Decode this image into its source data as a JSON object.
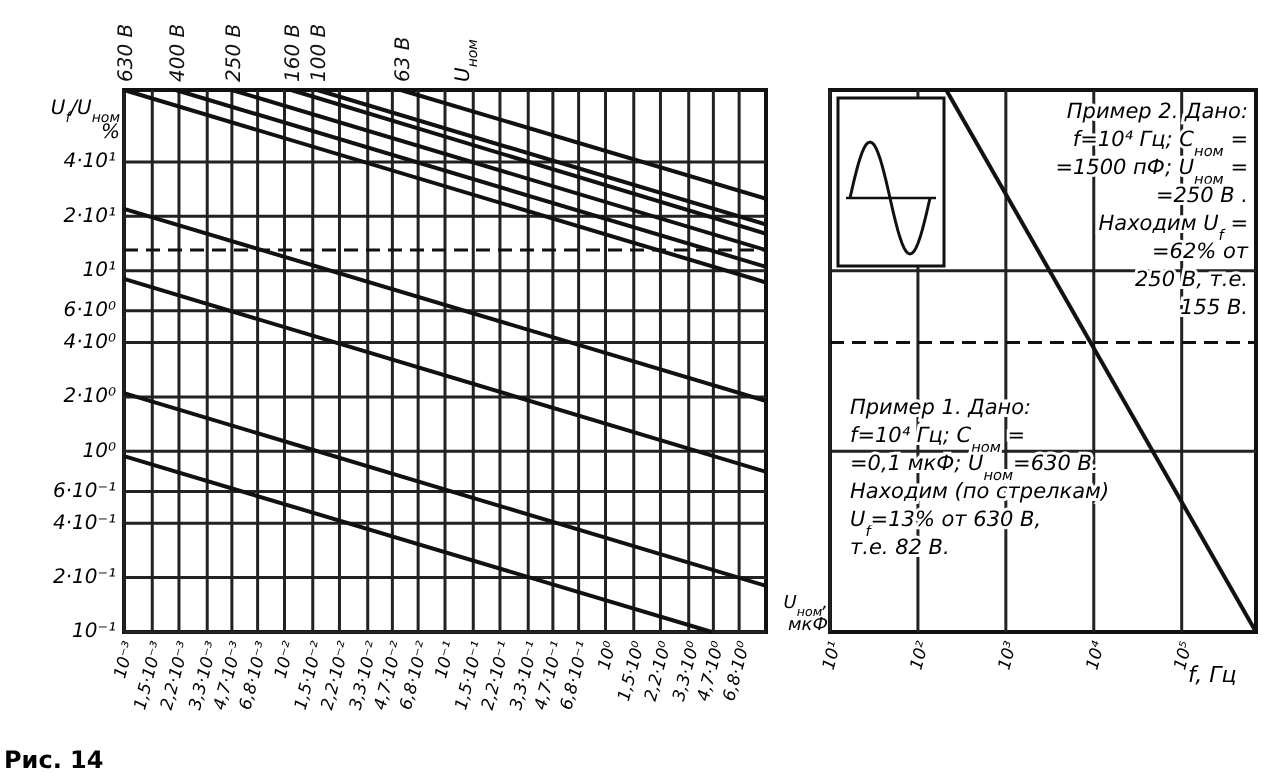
{
  "chart_data": [
    {
      "type": "line",
      "ylabel": "U$_{f}$/U$_{ном}$ %",
      "xlabel": "U$_{ном}$, мкФ",
      "legend_title": "U$_{ном}$",
      "log": "xy",
      "grid": true,
      "legend": "top",
      "line_style": "solid",
      "marker": "none",
      "xlim": [
        0.001,
        10
      ],
      "ylim": [
        0.1,
        100
      ],
      "xticks": [
        {
          "value": 0.001,
          "label": "10⁻³"
        },
        {
          "value": 0.0015,
          "label": "1,5·10⁻³"
        },
        {
          "value": 0.0022,
          "label": "2,2·10⁻³"
        },
        {
          "value": 0.0033,
          "label": "3,3·10⁻³"
        },
        {
          "value": 0.0047,
          "label": "4,7·10⁻³"
        },
        {
          "value": 0.0068,
          "label": "6,8·10⁻³"
        },
        {
          "value": 0.01,
          "label": "10⁻²"
        },
        {
          "value": 0.015,
          "label": "1,5·10⁻²"
        },
        {
          "value": 0.022,
          "label": "2,2·10⁻²"
        },
        {
          "value": 0.033,
          "label": "3,3·10⁻²"
        },
        {
          "value": 0.047,
          "label": "4,7·10⁻²"
        },
        {
          "value": 0.068,
          "label": "6,8·10⁻²"
        },
        {
          "value": 0.1,
          "label": "10⁻¹"
        },
        {
          "value": 0.15,
          "label": "1,5·10⁻¹"
        },
        {
          "value": 0.22,
          "label": "2,2·10⁻¹"
        },
        {
          "value": 0.33,
          "label": "3,3·10⁻¹"
        },
        {
          "value": 0.47,
          "label": "4,7·10⁻¹"
        },
        {
          "value": 0.68,
          "label": "6,8·10⁻¹"
        },
        {
          "value": 1,
          "label": "10⁰"
        },
        {
          "value": 1.5,
          "label": "1,5·10⁰"
        },
        {
          "value": 2.2,
          "label": "2,2·10⁰"
        },
        {
          "value": 3.3,
          "label": "3,3·10⁰"
        },
        {
          "value": 4.7,
          "label": "4,7·10⁰"
        },
        {
          "value": 6.8,
          "label": "6,8·10⁰"
        }
      ],
      "yticks": [
        {
          "value": 0.1,
          "label": "10⁻¹"
        },
        {
          "value": 0.2,
          "label": "2·10⁻¹"
        },
        {
          "value": 0.4,
          "label": "4·10⁻¹"
        },
        {
          "value": 0.6,
          "label": "6·10⁻¹"
        },
        {
          "value": 1,
          "label": "10⁰"
        },
        {
          "value": 2,
          "label": "2·10⁰"
        },
        {
          "value": 4,
          "label": "4·10⁰"
        },
        {
          "value": 6,
          "label": "6·10⁰"
        },
        {
          "value": 10,
          "label": "10¹"
        },
        {
          "value": 20,
          "label": "2·10¹"
        },
        {
          "value": 40,
          "label": "4·10¹"
        }
      ],
      "series": [
        {
          "name": "630 В",
          "color": "#111111",
          "x": [
            0.001,
            10
          ],
          "values": [
            100,
            8.6
          ]
        },
        {
          "name": "400 В",
          "color": "#111111",
          "x": [
            0.0021,
            10
          ],
          "values": [
            100,
            10.5
          ]
        },
        {
          "name": "250 В",
          "color": "#111111",
          "x": [
            0.0047,
            10
          ],
          "values": [
            100,
            13
          ]
        },
        {
          "name": "160 В",
          "color": "#111111",
          "x": [
            0.011,
            10
          ],
          "values": [
            100,
            16
          ]
        },
        {
          "name": "100 В",
          "color": "#111111",
          "x": [
            0.016,
            10
          ],
          "values": [
            100,
            18
          ]
        },
        {
          "name": "63 В",
          "color": "#111111",
          "x": [
            0.053,
            10
          ],
          "values": [
            100,
            25
          ]
        },
        {
          "color": "#111111",
          "x": [
            0.001,
            10
          ],
          "values": [
            22,
            1.9
          ]
        },
        {
          "color": "#111111",
          "x": [
            0.001,
            10
          ],
          "values": [
            9,
            0.77
          ]
        },
        {
          "color": "#111111",
          "x": [
            0.001,
            10
          ],
          "values": [
            2.1,
            0.18
          ]
        },
        {
          "color": "#111111",
          "x": [
            0.001,
            4.6
          ],
          "values": [
            0.94,
            0.1
          ]
        }
      ],
      "ref_lines": [
        {
          "axis": "y",
          "value": 13,
          "color": "#111111",
          "line_style": "dashed"
        }
      ],
      "annotations": [
        "Рис. 14"
      ]
    },
    {
      "type": "line",
      "xlabel": "f, Гц",
      "log": "xy",
      "grid": true,
      "legend": false,
      "tick_labels": "x",
      "line_style": "solid",
      "marker": "none",
      "xlim": [
        10,
        700000
      ],
      "ylim": [
        0.1,
        100
      ],
      "xticks": [
        {
          "value": 10,
          "label": "10¹"
        },
        {
          "value": 100,
          "label": "10²"
        },
        {
          "value": 1000,
          "label": "10³"
        },
        {
          "value": 10000,
          "label": "10⁴"
        },
        {
          "value": 100000,
          "label": "10⁵"
        }
      ],
      "yticks": [
        {
          "value": 1,
          "label": null
        },
        {
          "value": 10,
          "label": null
        }
      ],
      "series": [
        {
          "color": "#111111",
          "x": [
            210,
            700000
          ],
          "values": [
            100,
            0.1
          ]
        }
      ],
      "ref_lines": [
        {
          "axis": "y",
          "value": 4,
          "color": "#111111",
          "line_style": "dashed"
        }
      ],
      "annotations": [
        "Пример 2. Дано:\nf=10⁴ Гц; C$_{ном}$ =\n=1500 пФ; U$_{ном}$ =\n=250 В .\nНаходим U$_{f}$ =\n=62% от\n250 В, т.е.\n155 В.",
        "Пример 1. Дано:\nf=10⁴ Гц; C$_{ном}$ =\n=0,1 мкФ; U$_{ном}$=630 В.\nНаходим (по стрелкам)\nU$_{f}$=13% от 630 В,\nт.е. 82 В."
      ]
    }
  ]
}
